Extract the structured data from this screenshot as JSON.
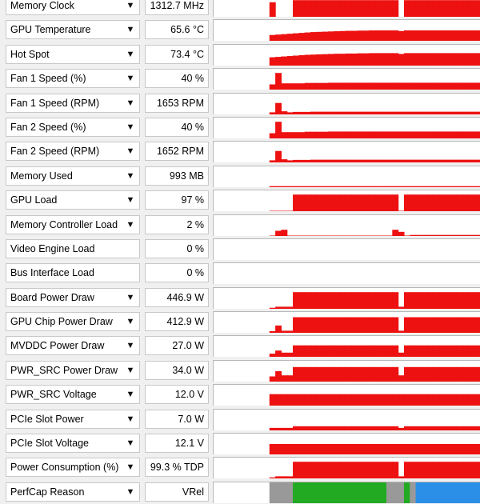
{
  "colors": {
    "graph": "#ee1111",
    "perfcap_idle": "#999999",
    "perfcap_vrel": "#22aa22",
    "perfcap_util": "#2b8fe8"
  },
  "sensors": [
    {
      "label": "Memory Clock",
      "value": "1312.7 MHz",
      "dropdown": true,
      "graph": [
        0,
        0,
        0,
        0,
        0.7,
        0,
        0,
        0,
        0.8,
        0.8,
        0.8,
        0.8,
        0.8,
        0.8,
        0.8,
        0.8,
        0.8,
        0.8,
        0.8,
        0.8,
        0.8,
        0.8,
        0.8,
        0.8,
        0.8,
        0.8,
        0,
        0.8,
        0.8,
        0.8,
        0.8,
        0.8,
        0.8,
        0.8,
        0.8,
        0.8,
        0.8,
        0.8,
        0.8,
        0.8
      ]
    },
    {
      "label": "GPU Temperature",
      "value": "65.6 °C",
      "dropdown": true,
      "graph": [
        0,
        0,
        0,
        0,
        0.28,
        0.3,
        0.32,
        0.34,
        0.36,
        0.38,
        0.4,
        0.42,
        0.43,
        0.44,
        0.45,
        0.46,
        0.47,
        0.48,
        0.48,
        0.49,
        0.49,
        0.5,
        0.5,
        0.5,
        0.5,
        0.5,
        0.47,
        0.5,
        0.5,
        0.5,
        0.5,
        0.5,
        0.5,
        0.5,
        0.5,
        0.5,
        0.5,
        0.5,
        0.5,
        0.5
      ]
    },
    {
      "label": "Hot Spot",
      "value": "73.4 °C",
      "dropdown": true,
      "graph": [
        0,
        0,
        0,
        0,
        0.4,
        0.42,
        0.44,
        0.46,
        0.48,
        0.5,
        0.52,
        0.53,
        0.54,
        0.55,
        0.56,
        0.57,
        0.57,
        0.58,
        0.58,
        0.59,
        0.59,
        0.6,
        0.6,
        0.6,
        0.6,
        0.6,
        0.56,
        0.6,
        0.6,
        0.6,
        0.6,
        0.6,
        0.6,
        0.6,
        0.6,
        0.6,
        0.6,
        0.6,
        0.6,
        0.6
      ]
    },
    {
      "label": "Fan 1 Speed (%)",
      "value": "40 %",
      "dropdown": true,
      "graph": [
        0,
        0,
        0,
        0,
        0.25,
        0.8,
        0.3,
        0.3,
        0.3,
        0.3,
        0.32,
        0.32,
        0.32,
        0.32,
        0.33,
        0.33,
        0.33,
        0.33,
        0.33,
        0.33,
        0.33,
        0.33,
        0.33,
        0.33,
        0.33,
        0.33,
        0.33,
        0.33,
        0.33,
        0.33,
        0.33,
        0.33,
        0.33,
        0.33,
        0.33,
        0.33,
        0.33,
        0.33,
        0.33,
        0.33
      ]
    },
    {
      "label": "Fan 1 Speed (RPM)",
      "value": "1653 RPM",
      "dropdown": true,
      "graph": [
        0,
        0,
        0,
        0,
        0.1,
        0.55,
        0.15,
        0.1,
        0.12,
        0.12,
        0.12,
        0.13,
        0.13,
        0.13,
        0.13,
        0.13,
        0.13,
        0.13,
        0.13,
        0.13,
        0.13,
        0.13,
        0.13,
        0.13,
        0.13,
        0.13,
        0.13,
        0.13,
        0.13,
        0.13,
        0.13,
        0.13,
        0.13,
        0.13,
        0.13,
        0.13,
        0.13,
        0.13,
        0.13,
        0.13
      ]
    },
    {
      "label": "Fan 2 Speed (%)",
      "value": "40 %",
      "dropdown": true,
      "graph": [
        0,
        0,
        0,
        0,
        0.25,
        0.8,
        0.3,
        0.3,
        0.3,
        0.3,
        0.32,
        0.32,
        0.32,
        0.32,
        0.33,
        0.33,
        0.33,
        0.33,
        0.33,
        0.33,
        0.33,
        0.33,
        0.33,
        0.33,
        0.33,
        0.33,
        0.33,
        0.33,
        0.33,
        0.33,
        0.33,
        0.33,
        0.33,
        0.33,
        0.33,
        0.33,
        0.33,
        0.33,
        0.33,
        0.33
      ]
    },
    {
      "label": "Fan 2 Speed (RPM)",
      "value": "1652 RPM",
      "dropdown": true,
      "graph": [
        0,
        0,
        0,
        0,
        0.1,
        0.55,
        0.15,
        0.1,
        0.12,
        0.12,
        0.12,
        0.13,
        0.13,
        0.13,
        0.13,
        0.13,
        0.13,
        0.13,
        0.13,
        0.13,
        0.13,
        0.13,
        0.13,
        0.13,
        0.13,
        0.13,
        0.13,
        0.13,
        0.13,
        0.13,
        0.13,
        0.13,
        0.13,
        0.13,
        0.13,
        0.13,
        0.13,
        0.13,
        0.13,
        0.13
      ]
    },
    {
      "label": "Memory Used",
      "value": "993 MB",
      "dropdown": true,
      "graph": [
        0,
        0,
        0,
        0,
        0.05,
        0.05,
        0.05,
        0.05,
        0.05,
        0.05,
        0.05,
        0.05,
        0.05,
        0.05,
        0.05,
        0.05,
        0.05,
        0.05,
        0.05,
        0.05,
        0.05,
        0.05,
        0.05,
        0.05,
        0.05,
        0.05,
        0.05,
        0.05,
        0.05,
        0.05,
        0.05,
        0.05,
        0.05,
        0.05,
        0.05,
        0.05,
        0.05,
        0.05,
        0.05,
        0.05
      ]
    },
    {
      "label": "GPU Load",
      "value": "97 %",
      "dropdown": true,
      "graph": [
        0,
        0,
        0,
        0,
        0.02,
        0.02,
        0.02,
        0.02,
        0.8,
        0.8,
        0.8,
        0.8,
        0.8,
        0.8,
        0.8,
        0.8,
        0.8,
        0.8,
        0.8,
        0.8,
        0.8,
        0.8,
        0.8,
        0.8,
        0.8,
        0.8,
        0.02,
        0.8,
        0.8,
        0.8,
        0.8,
        0.8,
        0.8,
        0.8,
        0.8,
        0.8,
        0.8,
        0.8,
        0.8,
        0.8
      ]
    },
    {
      "label": "Memory Controller Load",
      "value": "2 %",
      "dropdown": true,
      "graph": [
        0,
        0,
        0,
        0,
        0.02,
        0.25,
        0.3,
        0.02,
        0.02,
        0.02,
        0.02,
        0.02,
        0.02,
        0.02,
        0.02,
        0.02,
        0.02,
        0.02,
        0.02,
        0.02,
        0.02,
        0.02,
        0.02,
        0.02,
        0.02,
        0.3,
        0.2,
        0.02,
        0.05,
        0.05,
        0.05,
        0.05,
        0.05,
        0.05,
        0.05,
        0.05,
        0.05,
        0.05,
        0.05,
        0.05
      ]
    },
    {
      "label": "Video Engine Load",
      "value": "0 %",
      "dropdown": false,
      "graph": [
        0,
        0,
        0,
        0,
        0,
        0,
        0,
        0,
        0,
        0,
        0,
        0,
        0,
        0,
        0,
        0,
        0,
        0,
        0,
        0,
        0,
        0,
        0,
        0,
        0,
        0,
        0,
        0,
        0,
        0,
        0,
        0,
        0,
        0,
        0,
        0,
        0,
        0,
        0,
        0
      ]
    },
    {
      "label": "Bus Interface Load",
      "value": "0 %",
      "dropdown": false,
      "graph": [
        0,
        0,
        0,
        0,
        0,
        0,
        0,
        0,
        0,
        0,
        0,
        0,
        0,
        0,
        0,
        0,
        0,
        0,
        0,
        0,
        0,
        0,
        0,
        0,
        0,
        0,
        0,
        0,
        0,
        0,
        0,
        0,
        0,
        0,
        0,
        0,
        0,
        0,
        0,
        0
      ]
    },
    {
      "label": "Board Power Draw",
      "value": "446.9 W",
      "dropdown": true,
      "graph": [
        0,
        0,
        0,
        0,
        0.05,
        0.1,
        0.1,
        0.1,
        0.8,
        0.8,
        0.8,
        0.8,
        0.8,
        0.8,
        0.8,
        0.8,
        0.8,
        0.8,
        0.8,
        0.8,
        0.8,
        0.8,
        0.8,
        0.8,
        0.8,
        0.8,
        0.1,
        0.8,
        0.8,
        0.8,
        0.8,
        0.8,
        0.8,
        0.8,
        0.8,
        0.8,
        0.8,
        0.8,
        0.8,
        0.8
      ]
    },
    {
      "label": "GPU Chip Power Draw",
      "value": "412.9 W",
      "dropdown": true,
      "graph": [
        0,
        0,
        0,
        0,
        0.08,
        0.35,
        0.1,
        0.1,
        0.75,
        0.75,
        0.75,
        0.75,
        0.75,
        0.75,
        0.75,
        0.75,
        0.75,
        0.75,
        0.75,
        0.75,
        0.75,
        0.75,
        0.75,
        0.75,
        0.75,
        0.75,
        0.1,
        0.75,
        0.75,
        0.75,
        0.75,
        0.75,
        0.75,
        0.75,
        0.75,
        0.75,
        0.75,
        0.75,
        0.75,
        0.75
      ]
    },
    {
      "label": "MVDDC Power Draw",
      "value": "27.0 W",
      "dropdown": true,
      "graph": [
        0,
        0,
        0,
        0,
        0.15,
        0.3,
        0.2,
        0.2,
        0.55,
        0.55,
        0.55,
        0.55,
        0.55,
        0.55,
        0.55,
        0.55,
        0.55,
        0.55,
        0.55,
        0.55,
        0.55,
        0.55,
        0.55,
        0.55,
        0.55,
        0.55,
        0.2,
        0.55,
        0.55,
        0.55,
        0.55,
        0.55,
        0.55,
        0.55,
        0.55,
        0.55,
        0.55,
        0.55,
        0.55,
        0.55
      ]
    },
    {
      "label": "PWR_SRC Power Draw",
      "value": "34.0 W",
      "dropdown": true,
      "graph": [
        0,
        0,
        0,
        0,
        0.25,
        0.5,
        0.3,
        0.3,
        0.7,
        0.7,
        0.7,
        0.7,
        0.7,
        0.7,
        0.7,
        0.7,
        0.7,
        0.7,
        0.7,
        0.7,
        0.7,
        0.7,
        0.7,
        0.7,
        0.7,
        0.7,
        0.3,
        0.7,
        0.7,
        0.7,
        0.7,
        0.7,
        0.7,
        0.7,
        0.7,
        0.7,
        0.7,
        0.7,
        0.7,
        0.7
      ]
    },
    {
      "label": "PWR_SRC Voltage",
      "value": "12.0 V",
      "dropdown": true,
      "graph": [
        0,
        0,
        0,
        0,
        0.55,
        0.55,
        0.55,
        0.55,
        0.55,
        0.55,
        0.55,
        0.55,
        0.55,
        0.55,
        0.55,
        0.55,
        0.55,
        0.55,
        0.55,
        0.55,
        0.55,
        0.55,
        0.55,
        0.55,
        0.55,
        0.55,
        0.55,
        0.55,
        0.55,
        0.55,
        0.55,
        0.55,
        0.55,
        0.55,
        0.55,
        0.55,
        0.55,
        0.55,
        0.55,
        0.55
      ]
    },
    {
      "label": "PCIe Slot Power",
      "value": "7.0 W",
      "dropdown": true,
      "graph": [
        0,
        0,
        0,
        0,
        0.12,
        0.12,
        0.12,
        0.12,
        0.2,
        0.2,
        0.2,
        0.2,
        0.2,
        0.2,
        0.2,
        0.2,
        0.2,
        0.2,
        0.2,
        0.2,
        0.2,
        0.2,
        0.2,
        0.2,
        0.2,
        0.2,
        0.12,
        0.2,
        0.2,
        0.2,
        0.2,
        0.2,
        0.2,
        0.2,
        0.2,
        0.2,
        0.2,
        0.2,
        0.2,
        0.2
      ]
    },
    {
      "label": "PCIe Slot Voltage",
      "value": "12.1 V",
      "dropdown": true,
      "graph": [
        0,
        0,
        0,
        0,
        0.5,
        0.5,
        0.5,
        0.5,
        0.5,
        0.5,
        0.5,
        0.5,
        0.5,
        0.5,
        0.5,
        0.5,
        0.5,
        0.5,
        0.5,
        0.5,
        0.5,
        0.5,
        0.5,
        0.5,
        0.5,
        0.5,
        0.5,
        0.5,
        0.5,
        0.5,
        0.5,
        0.5,
        0.5,
        0.5,
        0.5,
        0.5,
        0.5,
        0.5,
        0.5,
        0.5
      ]
    },
    {
      "label": "Power Consumption (%)",
      "value": "99.3 % TDP",
      "dropdown": true,
      "graph": [
        0,
        0,
        0,
        0,
        0.05,
        0.1,
        0.1,
        0.1,
        0.8,
        0.8,
        0.8,
        0.8,
        0.8,
        0.8,
        0.8,
        0.8,
        0.8,
        0.8,
        0.8,
        0.8,
        0.8,
        0.8,
        0.8,
        0.8,
        0.8,
        0.8,
        0.1,
        0.8,
        0.8,
        0.8,
        0.8,
        0.8,
        0.8,
        0.8,
        0.8,
        0.8,
        0.8,
        0.8,
        0.8,
        0.8
      ]
    },
    {
      "label": "PerfCap Reason",
      "value": "VRel",
      "dropdown": true,
      "perfcap": [
        "idle",
        "idle",
        "idle",
        "idle",
        "idle",
        "idle",
        "idle",
        "idle",
        "vrel",
        "vrel",
        "vrel",
        "vrel",
        "vrel",
        "vrel",
        "vrel",
        "vrel",
        "vrel",
        "vrel",
        "vrel",
        "vrel",
        "vrel",
        "vrel",
        "vrel",
        "vrel",
        "idle",
        "idle",
        "idle",
        "vrel",
        "idle",
        "util",
        "util",
        "util",
        "util",
        "util",
        "util",
        "util",
        "util",
        "util",
        "util",
        "util"
      ]
    }
  ]
}
